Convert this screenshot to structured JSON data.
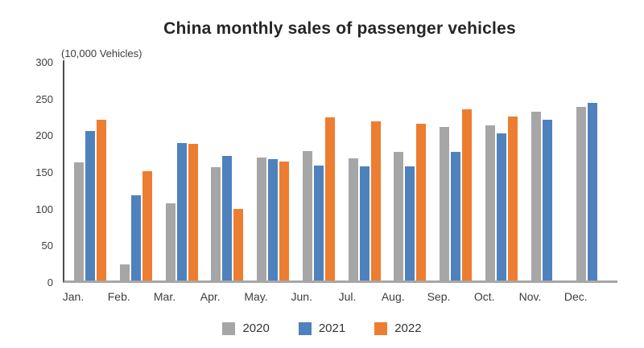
{
  "title": "China monthly sales of passenger vehicles",
  "unit_label": "(10,000 Vehicles)",
  "colors": {
    "series_2020": "#A6A6A6",
    "series_2021": "#4F81BD",
    "series_2022": "#ED7D31",
    "y_axis_line": "#4D4D4D",
    "x_axis_line": "#A6A6A6",
    "text": "#3D3D3D"
  },
  "chart_data": {
    "type": "bar",
    "title": "China monthly sales of passenger vehicles",
    "ylabel": "(10,000 Vehicles)",
    "xlabel": "",
    "categories": [
      "Jan.",
      "Feb.",
      "Mar.",
      "Apr.",
      "May.",
      "Jun.",
      "Jul.",
      "Aug.",
      "Sep.",
      "Oct.",
      "Nov.",
      "Dec."
    ],
    "series": [
      {
        "name": "2020",
        "color": "#A6A6A6",
        "values": [
          161,
          22,
          105,
          154,
          167,
          176,
          166,
          175,
          209,
          211,
          230,
          237
        ]
      },
      {
        "name": "2021",
        "color": "#4F81BD",
        "values": [
          204,
          116,
          187,
          170,
          165,
          157,
          155,
          155,
          175,
          200,
          219,
          242
        ]
      },
      {
        "name": "2022",
        "color": "#ED7D31",
        "values": [
          219,
          149,
          186,
          97,
          162,
          222,
          217,
          213,
          233,
          223,
          null,
          null
        ]
      }
    ],
    "ylim": [
      0,
      300
    ],
    "yticks": [
      0,
      50,
      100,
      150,
      200,
      250,
      300
    ],
    "grid": false,
    "legend_position": "bottom"
  },
  "legend": {
    "items": [
      {
        "label": "2020",
        "color": "#A6A6A6"
      },
      {
        "label": "2021",
        "color": "#4F81BD"
      },
      {
        "label": "2022",
        "color": "#ED7D31"
      }
    ]
  }
}
